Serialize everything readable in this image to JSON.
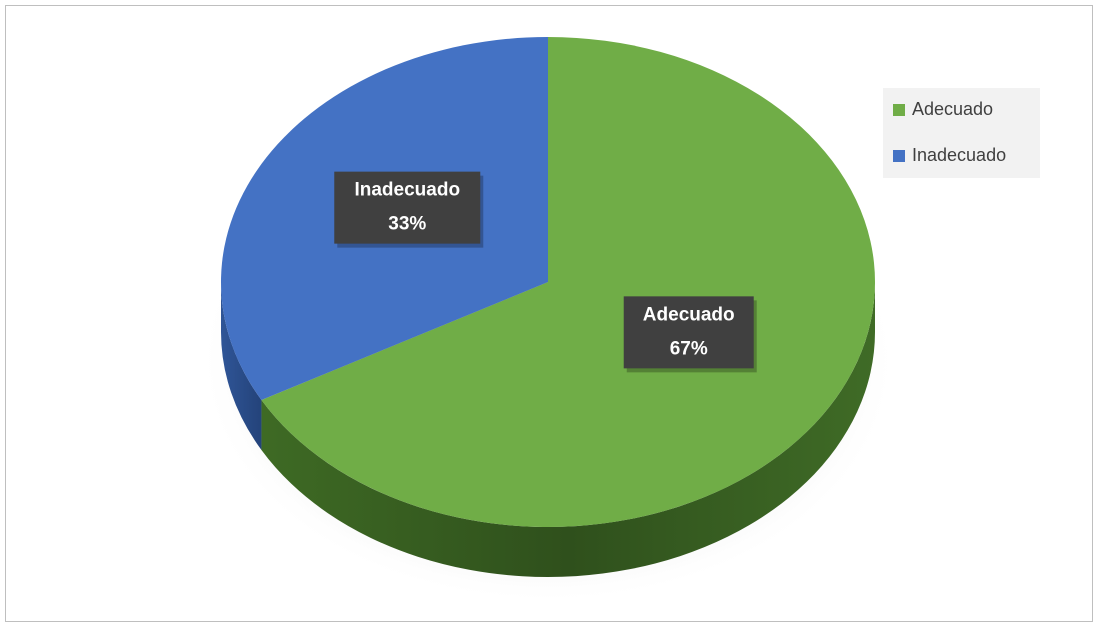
{
  "chart_data": {
    "type": "pie",
    "categories": [
      "Adecuado",
      "Inadecuado"
    ],
    "values": [
      67,
      33
    ],
    "value_labels": [
      "67%",
      "33%"
    ],
    "colors": [
      "#70ad47",
      "#4472c4"
    ],
    "legend": "top-right"
  }
}
